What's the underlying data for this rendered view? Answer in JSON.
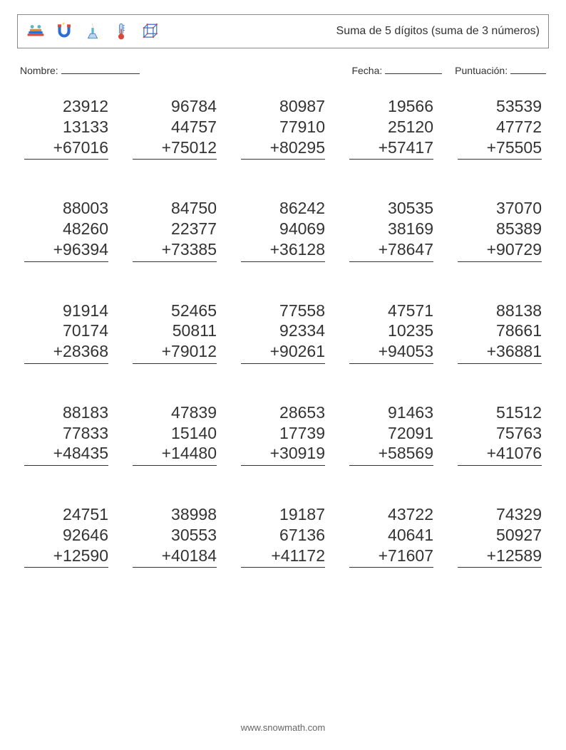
{
  "title": "Suma de 5 dígitos (suma de 3 números)",
  "labels": {
    "name": "Nombre:",
    "date": "Fecha:",
    "score": "Puntuación:"
  },
  "blank_widths": {
    "name": 110,
    "date": 80,
    "score": 50
  },
  "colors": {
    "text": "#333333",
    "border": "#888888",
    "rule": "#333333",
    "icon_blue": "#2e6fd6",
    "icon_orange": "#e08a2a",
    "icon_teal": "#5cb8c9",
    "icon_red": "#d94a3a",
    "icon_light": "#bcd6f2"
  },
  "font": {
    "title_size": 16,
    "label_size": 14,
    "number_size": 23
  },
  "icons": [
    "books-icon",
    "magnet-icon",
    "bunsen-burner-icon",
    "thermometer-icon",
    "cube-icon"
  ],
  "problems": [
    [
      {
        "a": "23912",
        "b": "13133",
        "c": "67016"
      },
      {
        "a": "96784",
        "b": "44757",
        "c": "75012"
      },
      {
        "a": "80987",
        "b": "77910",
        "c": "80295"
      },
      {
        "a": "19566",
        "b": "25120",
        "c": "57417"
      },
      {
        "a": "53539",
        "b": "47772",
        "c": "75505"
      }
    ],
    [
      {
        "a": "88003",
        "b": "48260",
        "c": "96394"
      },
      {
        "a": "84750",
        "b": "22377",
        "c": "73385"
      },
      {
        "a": "86242",
        "b": "94069",
        "c": "36128"
      },
      {
        "a": "30535",
        "b": "38169",
        "c": "78647"
      },
      {
        "a": "37070",
        "b": "85389",
        "c": "90729"
      }
    ],
    [
      {
        "a": "91914",
        "b": "70174",
        "c": "28368"
      },
      {
        "a": "52465",
        "b": "50811",
        "c": "79012"
      },
      {
        "a": "77558",
        "b": "92334",
        "c": "90261"
      },
      {
        "a": "47571",
        "b": "10235",
        "c": "94053"
      },
      {
        "a": "88138",
        "b": "78661",
        "c": "36881"
      }
    ],
    [
      {
        "a": "88183",
        "b": "77833",
        "c": "48435"
      },
      {
        "a": "47839",
        "b": "15140",
        "c": "14480"
      },
      {
        "a": "28653",
        "b": "17739",
        "c": "30919"
      },
      {
        "a": "91463",
        "b": "72091",
        "c": "58569"
      },
      {
        "a": "51512",
        "b": "75763",
        "c": "41076"
      }
    ],
    [
      {
        "a": "24751",
        "b": "92646",
        "c": "12590"
      },
      {
        "a": "38998",
        "b": "30553",
        "c": "40184"
      },
      {
        "a": "19187",
        "b": "67136",
        "c": "41172"
      },
      {
        "a": "43722",
        "b": "40641",
        "c": "71607"
      },
      {
        "a": "74329",
        "b": "50927",
        "c": "12589"
      }
    ]
  ],
  "footer": "www.snowmath.com"
}
